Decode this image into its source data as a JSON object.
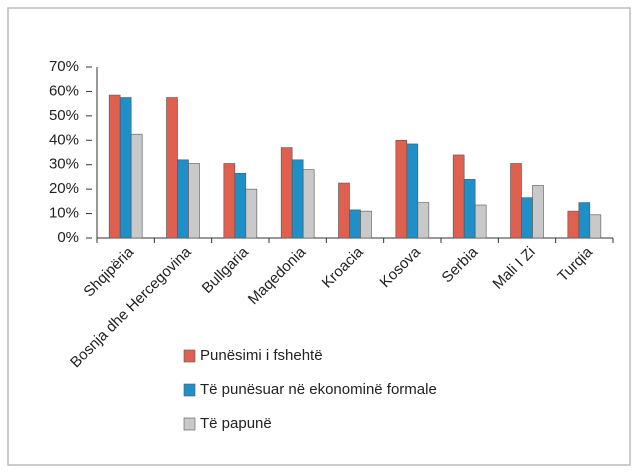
{
  "chart_data": {
    "type": "bar",
    "categories": [
      "Shqipëria",
      "Bosnja dhe Hercegovina",
      "Bullgaria",
      "Maqedonia",
      "Kroacia",
      "Kosova",
      "Serbia",
      "Mali I Zi",
      "Turqia"
    ],
    "series": [
      {
        "name": "Punësimi i fshehtë",
        "color": "#e0604f",
        "values": [
          58.5,
          57.5,
          30.5,
          37,
          22.5,
          40,
          34,
          30.5,
          11
        ]
      },
      {
        "name": "Të punësuar në ekonominë formale",
        "color": "#1f8fc8",
        "values": [
          57.5,
          32,
          26.5,
          32,
          11.5,
          38.5,
          24,
          16.5,
          14.5
        ]
      },
      {
        "name": "Të papunë",
        "color": "#c9c9c9",
        "values": [
          42.5,
          30.5,
          20,
          28,
          11,
          14.5,
          13.5,
          21.5,
          9.5
        ]
      }
    ],
    "ylim": [
      0,
      70
    ],
    "yticks": [
      {
        "value": 0,
        "label": "0%"
      },
      {
        "value": 10,
        "label": "10%"
      },
      {
        "value": 20,
        "label": "20%"
      },
      {
        "value": 30,
        "label": "30%"
      },
      {
        "value": 40,
        "label": "40%"
      },
      {
        "value": 50,
        "label": "50%"
      },
      {
        "value": 60,
        "label": "60%"
      },
      {
        "value": 70,
        "label": "70%"
      }
    ],
    "legend": "bottom"
  }
}
